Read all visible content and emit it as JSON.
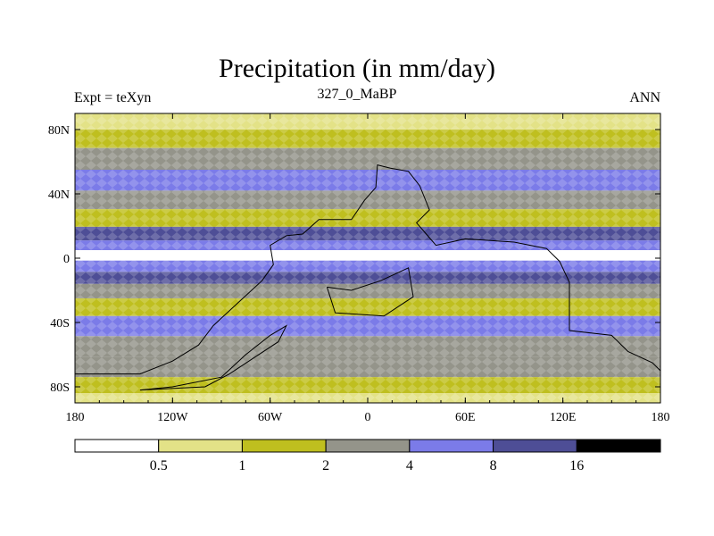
{
  "chart_data": {
    "type": "heatmap",
    "title": "Precipitation (in mm/day)",
    "left_string": "Expt = teXyn",
    "center_string": "327_0_MaBP",
    "right_string": "ANN",
    "x_ticks": [
      "180",
      "120W",
      "60W",
      "0",
      "60E",
      "120E",
      "180"
    ],
    "x_tick_values": [
      -180,
      -120,
      -60,
      0,
      60,
      120,
      180
    ],
    "y_ticks": [
      "80N",
      "40N",
      "0",
      "40S",
      "80S"
    ],
    "y_tick_values": [
      80,
      40,
      0,
      -40,
      -80
    ],
    "xlim": [
      -180,
      180
    ],
    "ylim": [
      -90,
      90
    ],
    "colorbar": {
      "levels": [
        "0.5",
        "1",
        "2",
        "4",
        "8",
        "16"
      ],
      "colors": [
        "#ffffff",
        "#e3e287",
        "#bfbf1f",
        "#94948a",
        "#7b7be8",
        "#4e4e96",
        "#000000"
      ]
    },
    "zonal_profile": [
      {
        "lat": 85,
        "precip": 0.7
      },
      {
        "lat": 75,
        "precip": 1.5
      },
      {
        "lat": 62,
        "precip": 2.5
      },
      {
        "lat": 48,
        "precip": 4.0
      },
      {
        "lat": 36,
        "precip": 2.5
      },
      {
        "lat": 25,
        "precip": 1.0
      },
      {
        "lat": 14,
        "precip": 8.0
      },
      {
        "lat": 8,
        "precip": 5.0
      },
      {
        "lat": 2,
        "precip": 0.4
      },
      {
        "lat": -5,
        "precip": 4.5
      },
      {
        "lat": -12,
        "precip": 10.0
      },
      {
        "lat": -20,
        "precip": 3.0
      },
      {
        "lat": -30,
        "precip": 1.5
      },
      {
        "lat": -42,
        "precip": 4.0
      },
      {
        "lat": -55,
        "precip": 3.0
      },
      {
        "lat": -68,
        "precip": 2.0
      },
      {
        "lat": -80,
        "precip": 1.2
      },
      {
        "lat": -88,
        "precip": 0.8
      }
    ],
    "land_outline": [
      [
        -180,
        -72
      ],
      [
        -140,
        -72
      ],
      [
        -120,
        -64
      ],
      [
        -104,
        -54
      ],
      [
        -95,
        -42
      ],
      [
        -80,
        -28
      ],
      [
        -65,
        -14
      ],
      [
        -58,
        -4
      ],
      [
        -60,
        8
      ],
      [
        -50,
        14
      ],
      [
        -40,
        15
      ],
      [
        -30,
        24
      ],
      [
        -10,
        24
      ],
      [
        -2,
        36
      ],
      [
        5,
        44
      ],
      [
        6,
        58
      ],
      [
        14,
        56
      ],
      [
        25,
        54
      ],
      [
        32,
        45
      ],
      [
        38,
        30
      ],
      [
        30,
        22
      ],
      [
        36,
        15
      ],
      [
        42,
        8
      ],
      [
        60,
        12
      ],
      [
        90,
        10
      ],
      [
        110,
        6
      ],
      [
        118,
        -2
      ],
      [
        124,
        -15
      ],
      [
        124,
        -45
      ],
      [
        150,
        -48
      ],
      [
        160,
        -58
      ],
      [
        175,
        -65
      ],
      [
        180,
        -70
      ]
    ],
    "land_outline_2": [
      [
        -140,
        -82
      ],
      [
        -120,
        -80
      ],
      [
        -90,
        -74
      ],
      [
        -75,
        -60
      ],
      [
        -60,
        -48
      ],
      [
        -50,
        -42
      ],
      [
        -55,
        -52
      ],
      [
        -70,
        -62
      ],
      [
        -85,
        -72
      ],
      [
        -100,
        -80
      ],
      [
        -140,
        -82
      ]
    ],
    "land_outline_3": [
      [
        -25,
        -18
      ],
      [
        -10,
        -20
      ],
      [
        8,
        -14
      ],
      [
        25,
        -6
      ],
      [
        28,
        -24
      ],
      [
        10,
        -36
      ],
      [
        -20,
        -34
      ],
      [
        -25,
        -18
      ]
    ]
  }
}
